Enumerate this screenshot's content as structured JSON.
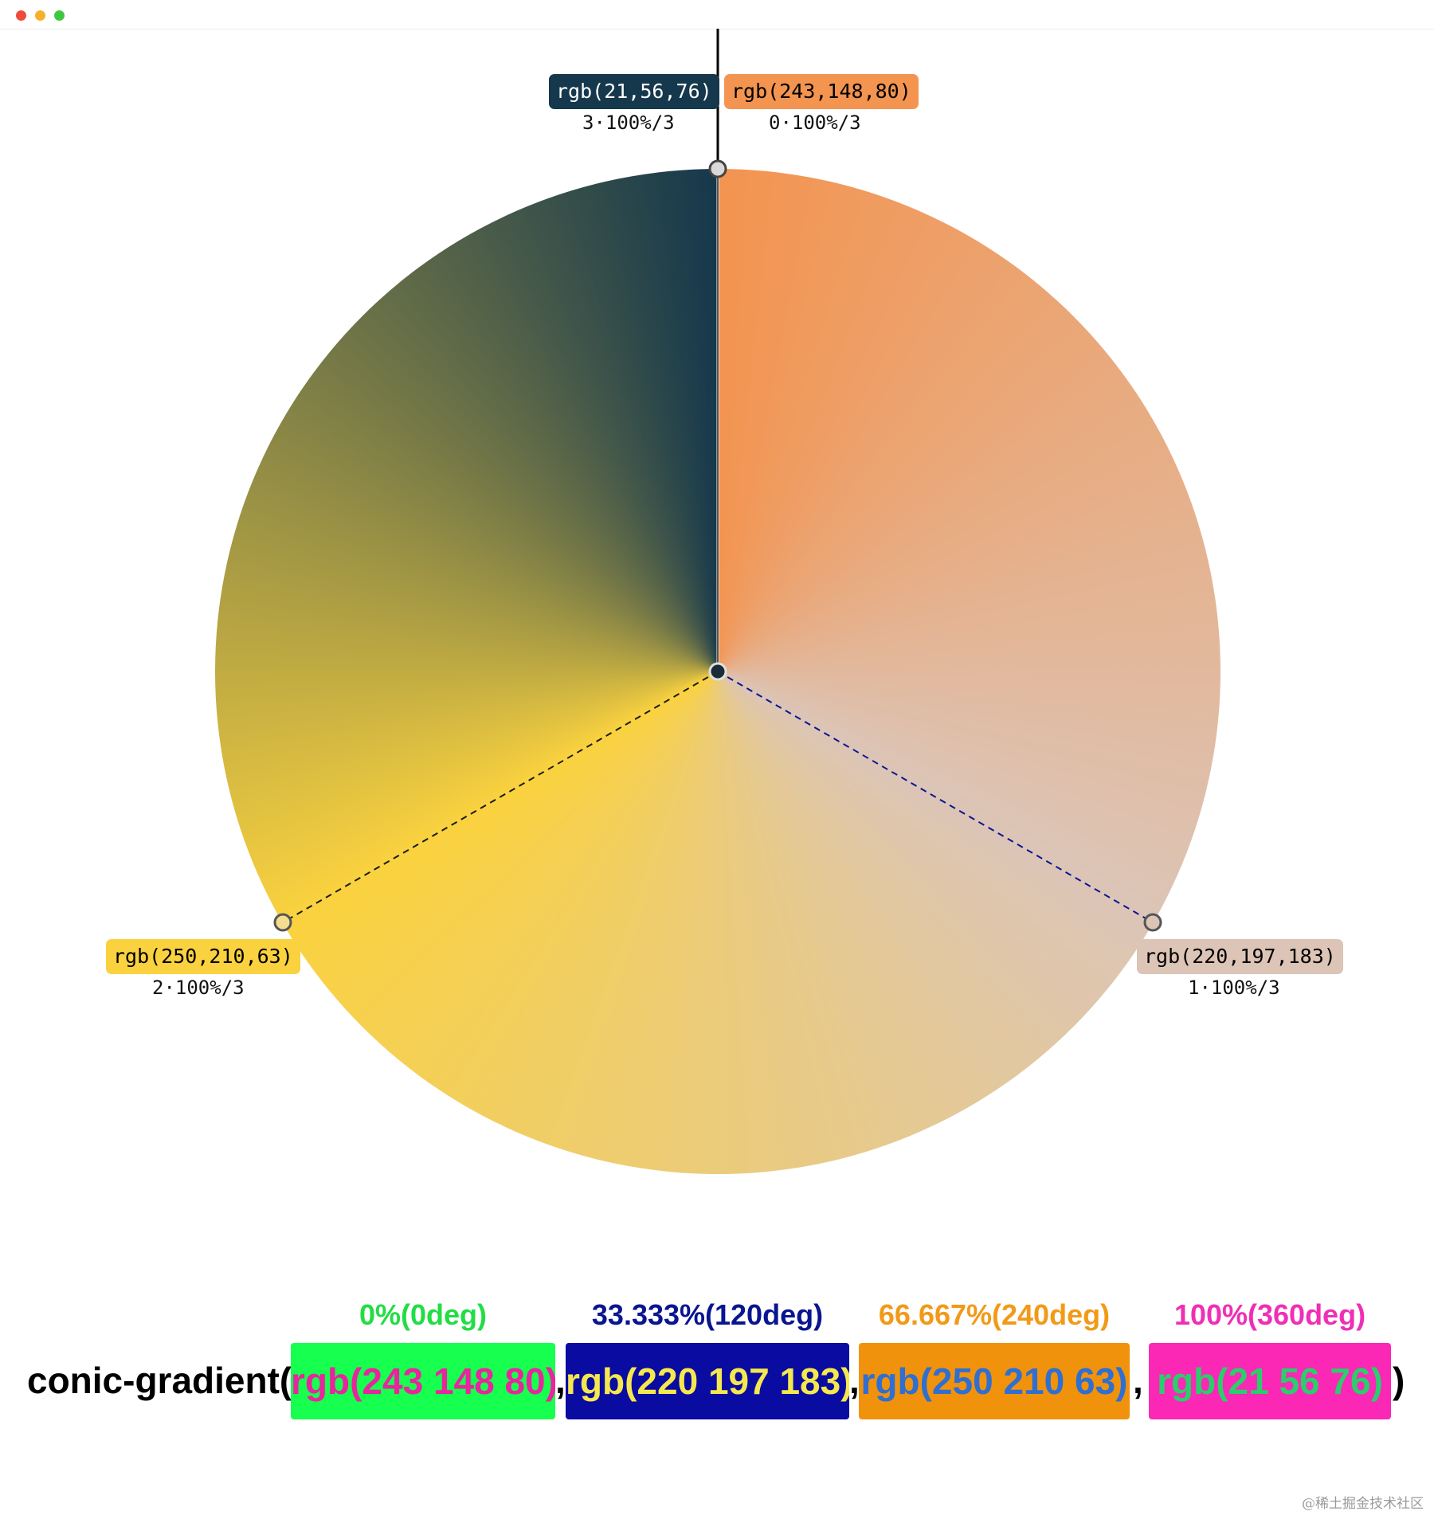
{
  "window": {
    "traffic_lights": [
      "#ee4b3c",
      "#f6b02a",
      "#3ec73f"
    ]
  },
  "gradient": {
    "stops": [
      {
        "rgb": [
          243,
          148,
          80
        ],
        "hex": "#f39450",
        "label": "rgb(243,148,80)",
        "position": "0·100%/3",
        "angle_deg": 0
      },
      {
        "rgb": [
          220,
          197,
          183
        ],
        "hex": "#dcc5b7",
        "label": "rgb(220,197,183)",
        "position": "1·100%/3",
        "angle_deg": 120
      },
      {
        "rgb": [
          250,
          210,
          63
        ],
        "hex": "#fad23f",
        "label": "rgb(250,210,63)",
        "position": "2·100%/3",
        "angle_deg": 240
      },
      {
        "rgb": [
          21,
          56,
          76
        ],
        "hex": "#15384c",
        "label": "rgb(21,56,76)",
        "position": "3·100%/3",
        "angle_deg": 360
      }
    ],
    "tag_text_colors": [
      "#000000",
      "#000000",
      "#000000",
      "#ffffff"
    ]
  },
  "code": {
    "prefix": "conic-gradient(",
    "suffix": ")",
    "separator": ",",
    "stops": [
      {
        "percent_label": "0%(0deg)",
        "value": "rgb(243 148 80)",
        "label_color": "#22dd44",
        "bg": "#17ff4f",
        "text_color": "#e8259e"
      },
      {
        "percent_label": "33.333%(120deg)",
        "value": "rgb(220 197 183)",
        "label_color": "#0a1590",
        "bg": "#0a0ba0",
        "text_color": "#f5e84e"
      },
      {
        "percent_label": "66.667%(240deg)",
        "value": "rgb(250 210 63)",
        "label_color": "#f29a18",
        "bg": "#f1920d",
        "text_color": "#2f6fd1"
      },
      {
        "percent_label": "100%(360deg)",
        "value": "rgb(21 56 76)",
        "label_color": "#ef2fb5",
        "bg": "#fb27b5",
        "text_color": "#2ccd6c"
      }
    ]
  },
  "watermark": "@稀土掘金技术社区"
}
